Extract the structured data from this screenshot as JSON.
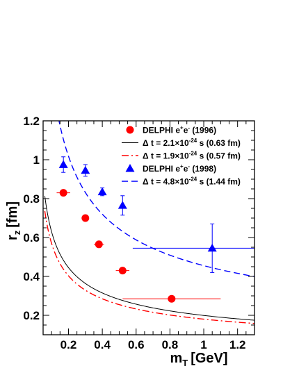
{
  "chart_data": {
    "type": "scatter",
    "xlabel": "m",
    "xlabel_sub": "T",
    "xlabel_unit": "[GeV]",
    "ylabel": "r",
    "ylabel_sub": "z",
    "ylabel_unit": "[fm]",
    "xlim": [
      0.05,
      1.3
    ],
    "ylim": [
      0.1,
      1.2
    ],
    "x_ticks": [
      "0.2",
      "0.4",
      "0.6",
      "0.8",
      "1",
      "1.2"
    ],
    "x_tick_values": [
      0.2,
      0.4,
      0.6,
      0.8,
      1.0,
      1.2
    ],
    "y_ticks": [
      "0.2",
      "0.4",
      "0.6",
      "0.8",
      "1",
      "1.2"
    ],
    "y_tick_values": [
      0.2,
      0.4,
      0.6,
      0.8,
      1.0,
      1.2
    ],
    "legend_position": "top-right",
    "series": [
      {
        "name": "DELPHI e+e- (1996)",
        "legend": {
          "main": "DELPHI e",
          "sup1": "+",
          "mid": "e",
          "sup2": "-",
          "tail": " (1996)"
        },
        "kind": "points",
        "marker": "circle",
        "color": "#ff0000",
        "points": [
          {
            "x": 0.17,
            "y": 0.83,
            "xerr": 0.04,
            "yerr": 0.0
          },
          {
            "x": 0.3,
            "y": 0.7,
            "xerr": 0.0,
            "yerr": 0.0
          },
          {
            "x": 0.38,
            "y": 0.565,
            "xerr": 0.03,
            "yerr": 0.0
          },
          {
            "x": 0.52,
            "y": 0.43,
            "xerr": 0.04,
            "yerr": 0.0
          },
          {
            "x": 0.81,
            "y": 0.285,
            "xerr": 0.29,
            "yerr": 0.0
          }
        ]
      },
      {
        "name": "Δ t = 2.1×10-24 s (0.63 fm)",
        "legend": {
          "main": "Δ t = 2.1×10",
          "sup1": "-24",
          "tail": " s (0.63 fm)"
        },
        "kind": "curve",
        "style": "solid",
        "color": "#000000",
        "r0": 0.63
      },
      {
        "name": "Δ t = 1.9×10-24 s (0.57 fm)",
        "legend": {
          "main": "Δ t = 1.9×10",
          "sup1": "-24",
          "tail": " s (0.57 fm)"
        },
        "kind": "curve",
        "style": "dashdot",
        "color": "#ff0000",
        "r0": 0.57
      },
      {
        "name": "DELPHI e+e- (1998)",
        "legend": {
          "main": "DELPHI e",
          "sup1": "+",
          "mid": "e",
          "sup2": "-",
          "tail": " (1998)"
        },
        "kind": "points",
        "marker": "triangle",
        "color": "#0000ff",
        "points": [
          {
            "x": 0.17,
            "y": 0.975,
            "xerr": 0.0,
            "yerr": 0.04
          },
          {
            "x": 0.3,
            "y": 0.945,
            "xerr": 0.0,
            "yerr": 0.03
          },
          {
            "x": 0.4,
            "y": 0.835,
            "xerr": 0.0,
            "yerr": 0.02
          },
          {
            "x": 0.52,
            "y": 0.765,
            "xerr": 0.0,
            "yerr": 0.05
          },
          {
            "x": 1.05,
            "y": 0.545,
            "xerr": 0.47,
            "yerr": 0.125
          }
        ]
      },
      {
        "name": "Δ t = 4.8×10-24 s (1.44 fm)",
        "legend": {
          "main": "Δ t = 4.8×10",
          "sup1": "-24",
          "tail": " s (1.44 fm)"
        },
        "kind": "curve",
        "style": "dashed",
        "color": "#0000ff",
        "r0": 1.44
      }
    ]
  }
}
